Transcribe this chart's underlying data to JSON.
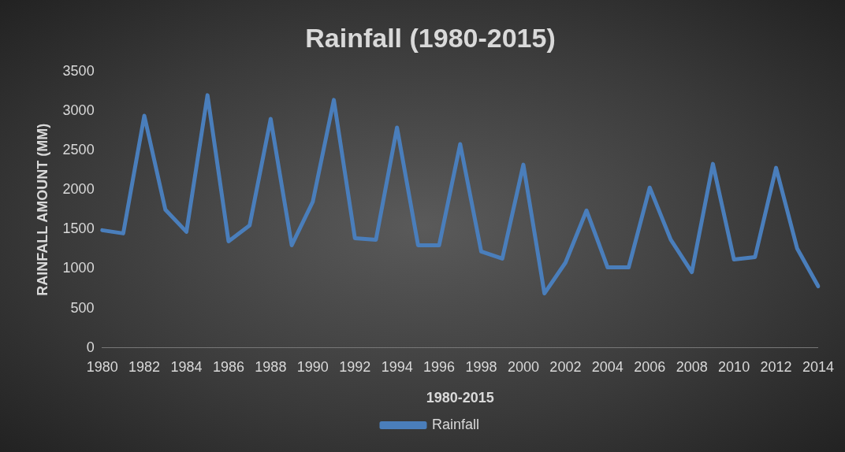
{
  "chart_data": {
    "type": "line",
    "title": "Rainfall (1980-2015)",
    "xlabel": "1980-2015",
    "ylabel": "RAINFALL AMOUNT (MM)",
    "categories": [
      "1980",
      null,
      "1982",
      null,
      "1984",
      null,
      "1986",
      null,
      "1988",
      null,
      "1990",
      null,
      "1992",
      null,
      "1994",
      null,
      "1996",
      null,
      "1998",
      null,
      "2000",
      null,
      "2002",
      null,
      "2004",
      null,
      "2006",
      null,
      "2008",
      null,
      "2010",
      null,
      "2012",
      null,
      "2014"
    ],
    "series": [
      {
        "name": "Rainfall",
        "color": "#4a7ebb",
        "values": [
          1490,
          1450,
          2940,
          1750,
          1470,
          3200,
          1350,
          1550,
          2900,
          1300,
          1850,
          3140,
          1390,
          1370,
          2790,
          1300,
          1300,
          2580,
          1220,
          1130,
          2320,
          690,
          1080,
          1740,
          1020,
          1020,
          2030,
          1370,
          960,
          2330,
          1120,
          1150,
          2280,
          1260,
          780
        ]
      }
    ],
    "ylim": [
      0,
      3500
    ],
    "yticks": [
      0,
      500,
      1000,
      1500,
      2000,
      2500,
      3000,
      3500
    ],
    "grid": false,
    "legend": "bottom",
    "marker": "none",
    "line_style": "solid"
  }
}
